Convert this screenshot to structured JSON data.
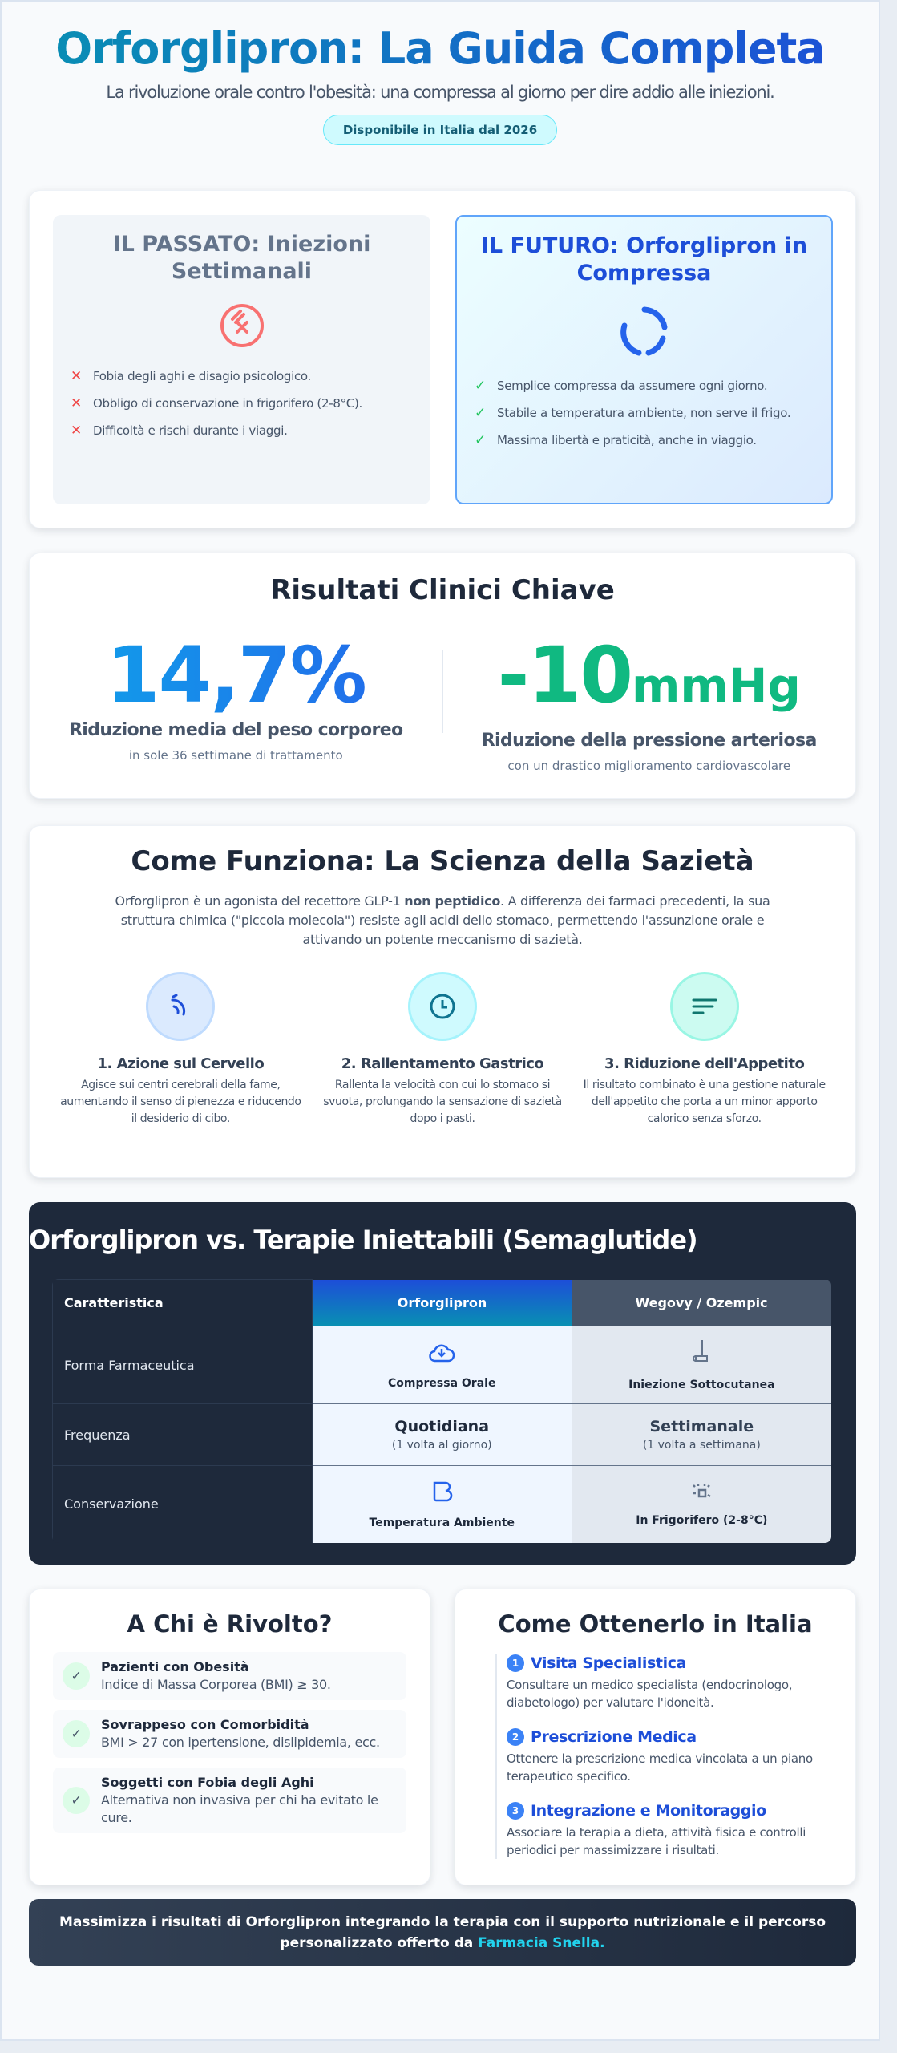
{
  "hero": {
    "title": "Orforglipron: La Guida Completa",
    "subtitle": "La rivoluzione orale contro l'obesità: una compressa al giorno per dire addio alle iniezioni.",
    "badge": "Disponibile in Italia dal 2026"
  },
  "comparison": {
    "past": {
      "title": "IL PASSATO: Iniezioni Settimanali",
      "icon": "syringe-blocked-icon",
      "items": [
        "Fobia degli aghi e disagio psicologico.",
        "Obbligo di conservazione in frigorifero (2-8°C).",
        "Difficoltà e rischi durante i viaggi."
      ]
    },
    "future": {
      "title": "IL FUTURO: Orforglipron in Compressa",
      "icon": "refresh-cycle-icon",
      "items": [
        "Semplice compressa da assumere ogni giorno.",
        "Stabile a temperatura ambiente, non serve il frigo.",
        "Massima libertà e praticità, anche in viaggio."
      ]
    }
  },
  "results": {
    "title": "Risultati Clinici Chiave",
    "stats": [
      {
        "value": "14,7%",
        "unit": "",
        "label": "Riduzione media del peso corporeo",
        "sub": "in sole 36 settimane di trattamento"
      },
      {
        "value": "-10",
        "unit": "mmHg",
        "label": "Riduzione della pressione arteriosa",
        "sub": "con un drastico miglioramento cardiovascolare"
      }
    ]
  },
  "how": {
    "title": "Come Funziona: La Scienza della Sazietà",
    "intro_a": "Orforglipron è un agonista del recettore GLP-1 ",
    "intro_bold": "non peptidico",
    "intro_b": ". A differenza dei farmaci precedenti, la sua struttura chimica (\"piccola molecola\") resiste agli acidi dello stomaco, permettendo l'assunzione orale e attivando un potente meccanismo di sazietà.",
    "steps": [
      {
        "title": "1. Azione sul Cervello",
        "text": "Agisce sui centri cerebrali della fame, aumentando il senso di pienezza e riducendo il desiderio di cibo.",
        "icon": "brain-signal-icon",
        "color": "#1d4ed8"
      },
      {
        "title": "2. Rallentamento Gastrico",
        "text": "Rallenta la velocità con cui lo stomaco si svuota, prolungando la sensazione di sazietà dopo i pasti.",
        "icon": "clock-icon",
        "color": "#0e7490"
      },
      {
        "title": "3. Riduzione dell'Appetito",
        "text": "Il risultato combinato è una gestione naturale dell'appetito che porta a un minor apporto calorico senza sforzo.",
        "icon": "lines-icon",
        "color": "#0f766e"
      }
    ]
  },
  "vs": {
    "title": "Orforglipron vs. Terapie Iniettabili (Semaglutide)",
    "headers": [
      "Caratteristica",
      "Orforglipron",
      "Wegovy / Ozempic"
    ],
    "rows": [
      {
        "label": "Forma Farmaceutica",
        "a": "Compressa Orale",
        "b": "Iniezione Sottocutanea",
        "a_icon": "pill-download-icon",
        "b_icon": "syringe-icon"
      },
      {
        "label": "Frequenza",
        "a": "Quotidiana",
        "a_sub": "(1 volta al giorno)",
        "b": "Settimanale",
        "b_sub": "(1 volta a settimana)"
      },
      {
        "label": "Conservazione",
        "a": "Temperatura Ambiente",
        "b": "In Frigorifero (2-8°C)",
        "a_icon": "box-icon",
        "b_icon": "snowflake-icon"
      }
    ]
  },
  "who": {
    "title": "A Chi è Rivolto?",
    "items": [
      {
        "title": "Pazienti con Obesità",
        "text": "Indice di Massa Corporea (BMI) ≥ 30."
      },
      {
        "title": "Sovrappeso con Comorbidità",
        "text": "BMI > 27 con ipertensione, dislipidemia, ecc."
      },
      {
        "title": "Soggetti con Fobia degli Aghi",
        "text": "Alternativa non invasiva per chi ha evitato le cure."
      }
    ]
  },
  "get": {
    "title": "Come Ottenerlo in Italia",
    "steps": [
      {
        "n": "1",
        "title": "Visita Specialistica",
        "text": "Consultare un medico specialista (endocrinologo, diabetologo) per valutare l'idoneità."
      },
      {
        "n": "2",
        "title": "Prescrizione Medica",
        "text": "Ottenere la prescrizione medica vincolata a un piano terapeutico specifico."
      },
      {
        "n": "3",
        "title": "Integrazione e Monitoraggio",
        "text": "Associare la terapia a dieta, attività fisica e controlli periodici per massimizzare i risultati."
      }
    ]
  },
  "footer": {
    "text": "Massimizza i risultati di Orforglipron integrando la terapia con il supporto nutrizionale e il percorso personalizzato offerto da ",
    "highlight": "Farmacia Snella."
  }
}
